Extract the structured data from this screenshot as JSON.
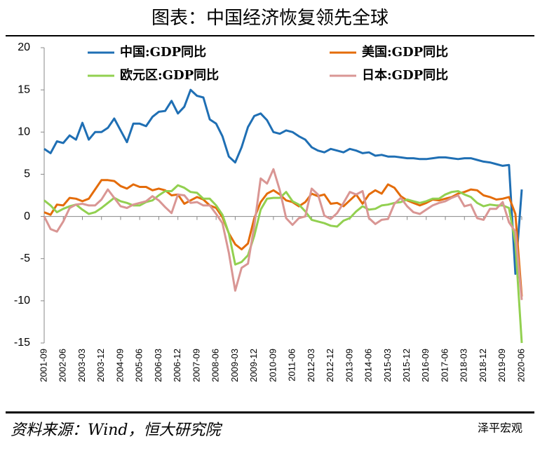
{
  "chart_data": {
    "type": "line",
    "title": "图表：中国经济恢复领先全球",
    "source": "资料来源：Wind，恒大研究院",
    "watermark": "泽平宏观",
    "categories": [
      "2001-09",
      null,
      null,
      "2002-06",
      null,
      null,
      "2003-03",
      null,
      null,
      "2003-12",
      null,
      null,
      "2004-09",
      null,
      null,
      "2005-06",
      null,
      null,
      "2006-03",
      null,
      null,
      "2006-12",
      null,
      null,
      "2007-09",
      null,
      null,
      "2008-06",
      null,
      null,
      "2009-03",
      null,
      null,
      "2009-12",
      null,
      null,
      "2010-09",
      null,
      null,
      "2011-06",
      null,
      null,
      "2012-03",
      null,
      null,
      "2012-12",
      null,
      null,
      "2013-09",
      null,
      null,
      "2014-06",
      null,
      null,
      "2015-03",
      null,
      null,
      "2015-12",
      null,
      null,
      "2016-09",
      null,
      null,
      "2017-06",
      null,
      null,
      "2018-03",
      null,
      null,
      "2018-12",
      null,
      null,
      "2019-09",
      null,
      null,
      "2020-06"
    ],
    "series": [
      {
        "name": "中国:GDP同比",
        "color": "#1f6fb4",
        "values": [
          8.0,
          7.5,
          8.9,
          8.7,
          9.6,
          9.1,
          11.1,
          9.1,
          10.0,
          10.0,
          10.5,
          11.6,
          10.2,
          8.8,
          11.0,
          11.0,
          10.7,
          11.8,
          12.4,
          12.5,
          13.7,
          12.2,
          13.0,
          15.0,
          14.3,
          14.1,
          11.5,
          11.0,
          9.5,
          7.1,
          6.4,
          8.2,
          10.6,
          11.9,
          12.2,
          11.4,
          10.0,
          9.8,
          10.2,
          10.0,
          9.5,
          9.1,
          8.2,
          7.8,
          7.6,
          8.0,
          7.8,
          7.6,
          8.0,
          7.8,
          7.5,
          7.6,
          7.2,
          7.3,
          7.1,
          7.1,
          7.0,
          6.9,
          6.9,
          6.8,
          6.8,
          6.9,
          7.0,
          7.0,
          6.9,
          6.8,
          6.9,
          6.9,
          6.7,
          6.5,
          6.4,
          6.2,
          6.0,
          6.1,
          -6.8,
          3.2
        ]
      },
      {
        "name": "美国:GDP同比",
        "color": "#e46c0a",
        "values": [
          0.5,
          0.2,
          1.4,
          1.3,
          2.2,
          2.1,
          1.8,
          2.1,
          3.2,
          4.3,
          4.3,
          4.2,
          3.6,
          3.3,
          3.8,
          3.5,
          3.5,
          3.1,
          3.3,
          3.1,
          2.5,
          2.6,
          1.5,
          1.9,
          2.3,
          2.0,
          1.3,
          1.0,
          -0.1,
          -2.0,
          -3.3,
          -3.9,
          -3.2,
          -0.2,
          1.7,
          2.7,
          3.1,
          2.6,
          1.9,
          1.7,
          1.2,
          1.7,
          2.7,
          2.4,
          2.6,
          1.5,
          1.6,
          1.2,
          1.9,
          2.6,
          1.5,
          2.6,
          3.1,
          2.7,
          3.8,
          3.4,
          2.4,
          1.9,
          1.6,
          1.3,
          1.6,
          2.0,
          1.9,
          2.1,
          2.3,
          2.7,
          2.9,
          3.2,
          3.1,
          2.5,
          2.3,
          2.0,
          2.1,
          2.3,
          0.3,
          -9.5
        ]
      },
      {
        "name": "欧元区:GDP同比",
        "color": "#92d050",
        "values": [
          1.9,
          1.3,
          0.5,
          0.9,
          1.2,
          1.4,
          0.8,
          0.3,
          0.5,
          1.0,
          1.6,
          2.2,
          1.8,
          1.6,
          1.3,
          1.3,
          1.7,
          1.9,
          2.5,
          3.0,
          3.0,
          3.7,
          3.4,
          2.9,
          2.8,
          2.1,
          2.1,
          1.3,
          0.2,
          -2.0,
          -5.7,
          -5.4,
          -4.6,
          -2.3,
          0.8,
          2.1,
          2.2,
          2.2,
          2.9,
          1.8,
          1.4,
          0.6,
          -0.4,
          -0.6,
          -0.8,
          -1.1,
          -1.2,
          -0.5,
          -0.2,
          0.6,
          1.2,
          0.8,
          0.9,
          1.3,
          1.4,
          1.6,
          1.7,
          2.0,
          1.8,
          1.6,
          1.8,
          2.1,
          2.1,
          2.6,
          2.9,
          3.0,
          2.6,
          2.3,
          1.6,
          1.2,
          1.4,
          1.3,
          1.3,
          1.0,
          -3.2,
          -15.0
        ]
      },
      {
        "name": "日本:GDP同比",
        "color": "#d99694",
        "values": [
          0.0,
          -1.5,
          -1.8,
          -0.6,
          1.0,
          1.4,
          1.5,
          1.3,
          1.3,
          2.0,
          3.2,
          2.2,
          1.2,
          1.0,
          1.4,
          1.6,
          1.8,
          2.4,
          1.9,
          1.1,
          0.4,
          2.6,
          2.5,
          1.6,
          1.7,
          1.3,
          1.3,
          0.3,
          -0.8,
          -4.3,
          -8.8,
          -6.1,
          -5.6,
          -1.1,
          4.5,
          3.9,
          5.6,
          3.1,
          -0.2,
          -1.0,
          -0.2,
          0.0,
          3.3,
          2.6,
          0.1,
          -0.3,
          0.4,
          1.6,
          2.9,
          2.6,
          3.0,
          -0.2,
          -0.9,
          -0.4,
          -0.3,
          1.5,
          2.2,
          1.2,
          0.5,
          0.3,
          0.8,
          1.3,
          1.6,
          1.8,
          2.2,
          2.5,
          1.2,
          1.4,
          -0.2,
          -0.4,
          0.9,
          0.9,
          1.7,
          -0.7,
          -1.8,
          -9.9
        ]
      }
    ],
    "ylim": [
      -15,
      20
    ],
    "yticks": [
      -15,
      -10,
      -5,
      0,
      5,
      10,
      15,
      20
    ]
  }
}
